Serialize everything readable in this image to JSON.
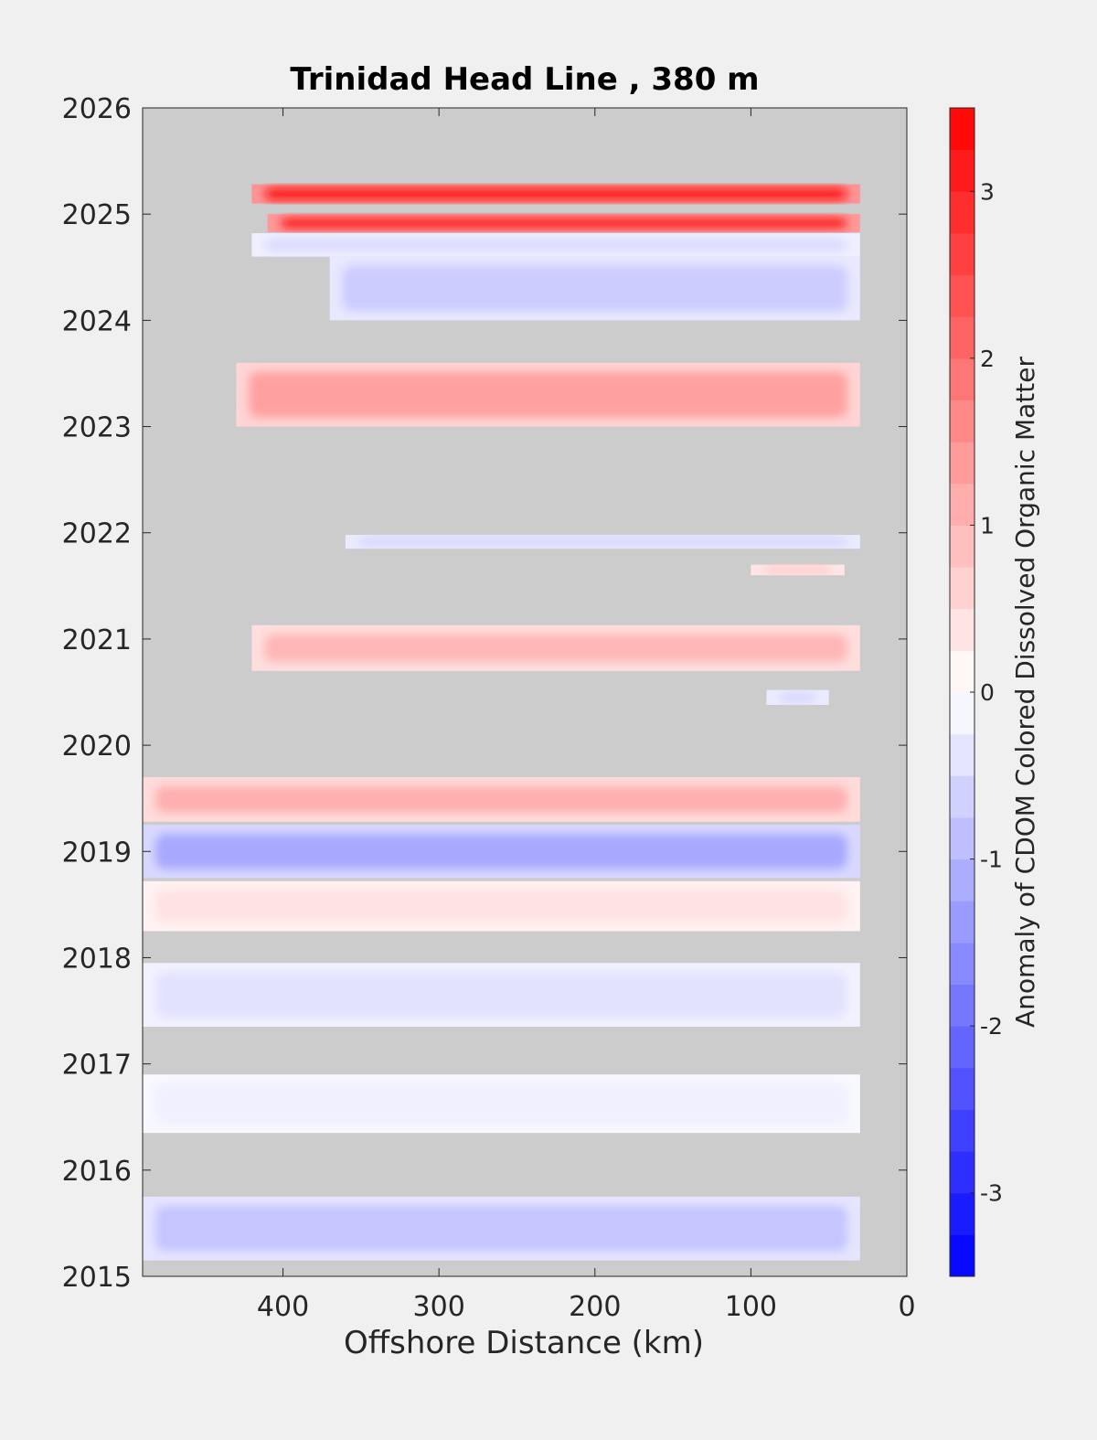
{
  "chart_data": {
    "type": "heatmap",
    "title": "Trinidad Head Line , 380 m",
    "xlabel": "Offshore Distance (km)",
    "ylabel": "",
    "colorbar_label": "Anomaly of CDOM Colored Dissolved Organic Matter",
    "x_range": [
      490,
      0
    ],
    "x_reversed": true,
    "y_range": [
      2015,
      2026
    ],
    "x_ticks": [
      400,
      300,
      200,
      100,
      0
    ],
    "y_ticks": [
      2015,
      2016,
      2017,
      2018,
      2019,
      2020,
      2021,
      2022,
      2023,
      2024,
      2025,
      2026
    ],
    "color_range": [
      -3.5,
      3.5
    ],
    "color_levels": 28,
    "colorbar_ticks": [
      -3,
      -2,
      -1,
      0,
      1,
      2,
      3
    ],
    "colormap": "blue-white-red",
    "colors": {
      "missing": "#cccccc",
      "negative": "#0000ff",
      "zero": "#ffffff",
      "positive": "#ff0000",
      "figure_background": "#f0f0f0"
    },
    "bands": [
      {
        "x_far": 420,
        "x_near": 30,
        "y_start": 2025.1,
        "y_end": 2025.28,
        "value": 3.3
      },
      {
        "x_far": 410,
        "x_near": 30,
        "y_start": 2024.83,
        "y_end": 2025.0,
        "value": 3.1
      },
      {
        "x_far": 420,
        "x_near": 30,
        "y_start": 2024.6,
        "y_end": 2024.82,
        "value": -0.5
      },
      {
        "x_far": 370,
        "x_near": 30,
        "y_start": 2024.0,
        "y_end": 2024.6,
        "value": -0.7
      },
      {
        "x_far": 430,
        "x_near": 30,
        "y_start": 2023.0,
        "y_end": 2023.6,
        "value": 1.3
      },
      {
        "x_far": 360,
        "x_near": 30,
        "y_start": 2021.85,
        "y_end": 2021.98,
        "value": -0.6
      },
      {
        "x_far": 100,
        "x_near": 40,
        "y_start": 2021.6,
        "y_end": 2021.7,
        "value": 0.8
      },
      {
        "x_far": 420,
        "x_near": 30,
        "y_start": 2020.7,
        "y_end": 2021.13,
        "value": 1.0
      },
      {
        "x_far": 90,
        "x_near": 50,
        "y_start": 2020.38,
        "y_end": 2020.52,
        "value": -0.6
      },
      {
        "x_far": 490,
        "x_near": 30,
        "y_start": 2019.28,
        "y_end": 2019.7,
        "value": 1.1
      },
      {
        "x_far": 490,
        "x_near": 30,
        "y_start": 2018.75,
        "y_end": 2019.25,
        "value": -1.2
      },
      {
        "x_far": 490,
        "x_near": 30,
        "y_start": 2018.25,
        "y_end": 2018.72,
        "value": 0.4
      },
      {
        "x_far": 490,
        "x_near": 30,
        "y_start": 2017.35,
        "y_end": 2017.95,
        "value": -0.4
      },
      {
        "x_far": 490,
        "x_near": 30,
        "y_start": 2016.35,
        "y_end": 2016.9,
        "value": -0.2
      },
      {
        "x_far": 490,
        "x_near": 30,
        "y_start": 2015.15,
        "y_end": 2015.75,
        "value": -0.8
      }
    ]
  }
}
